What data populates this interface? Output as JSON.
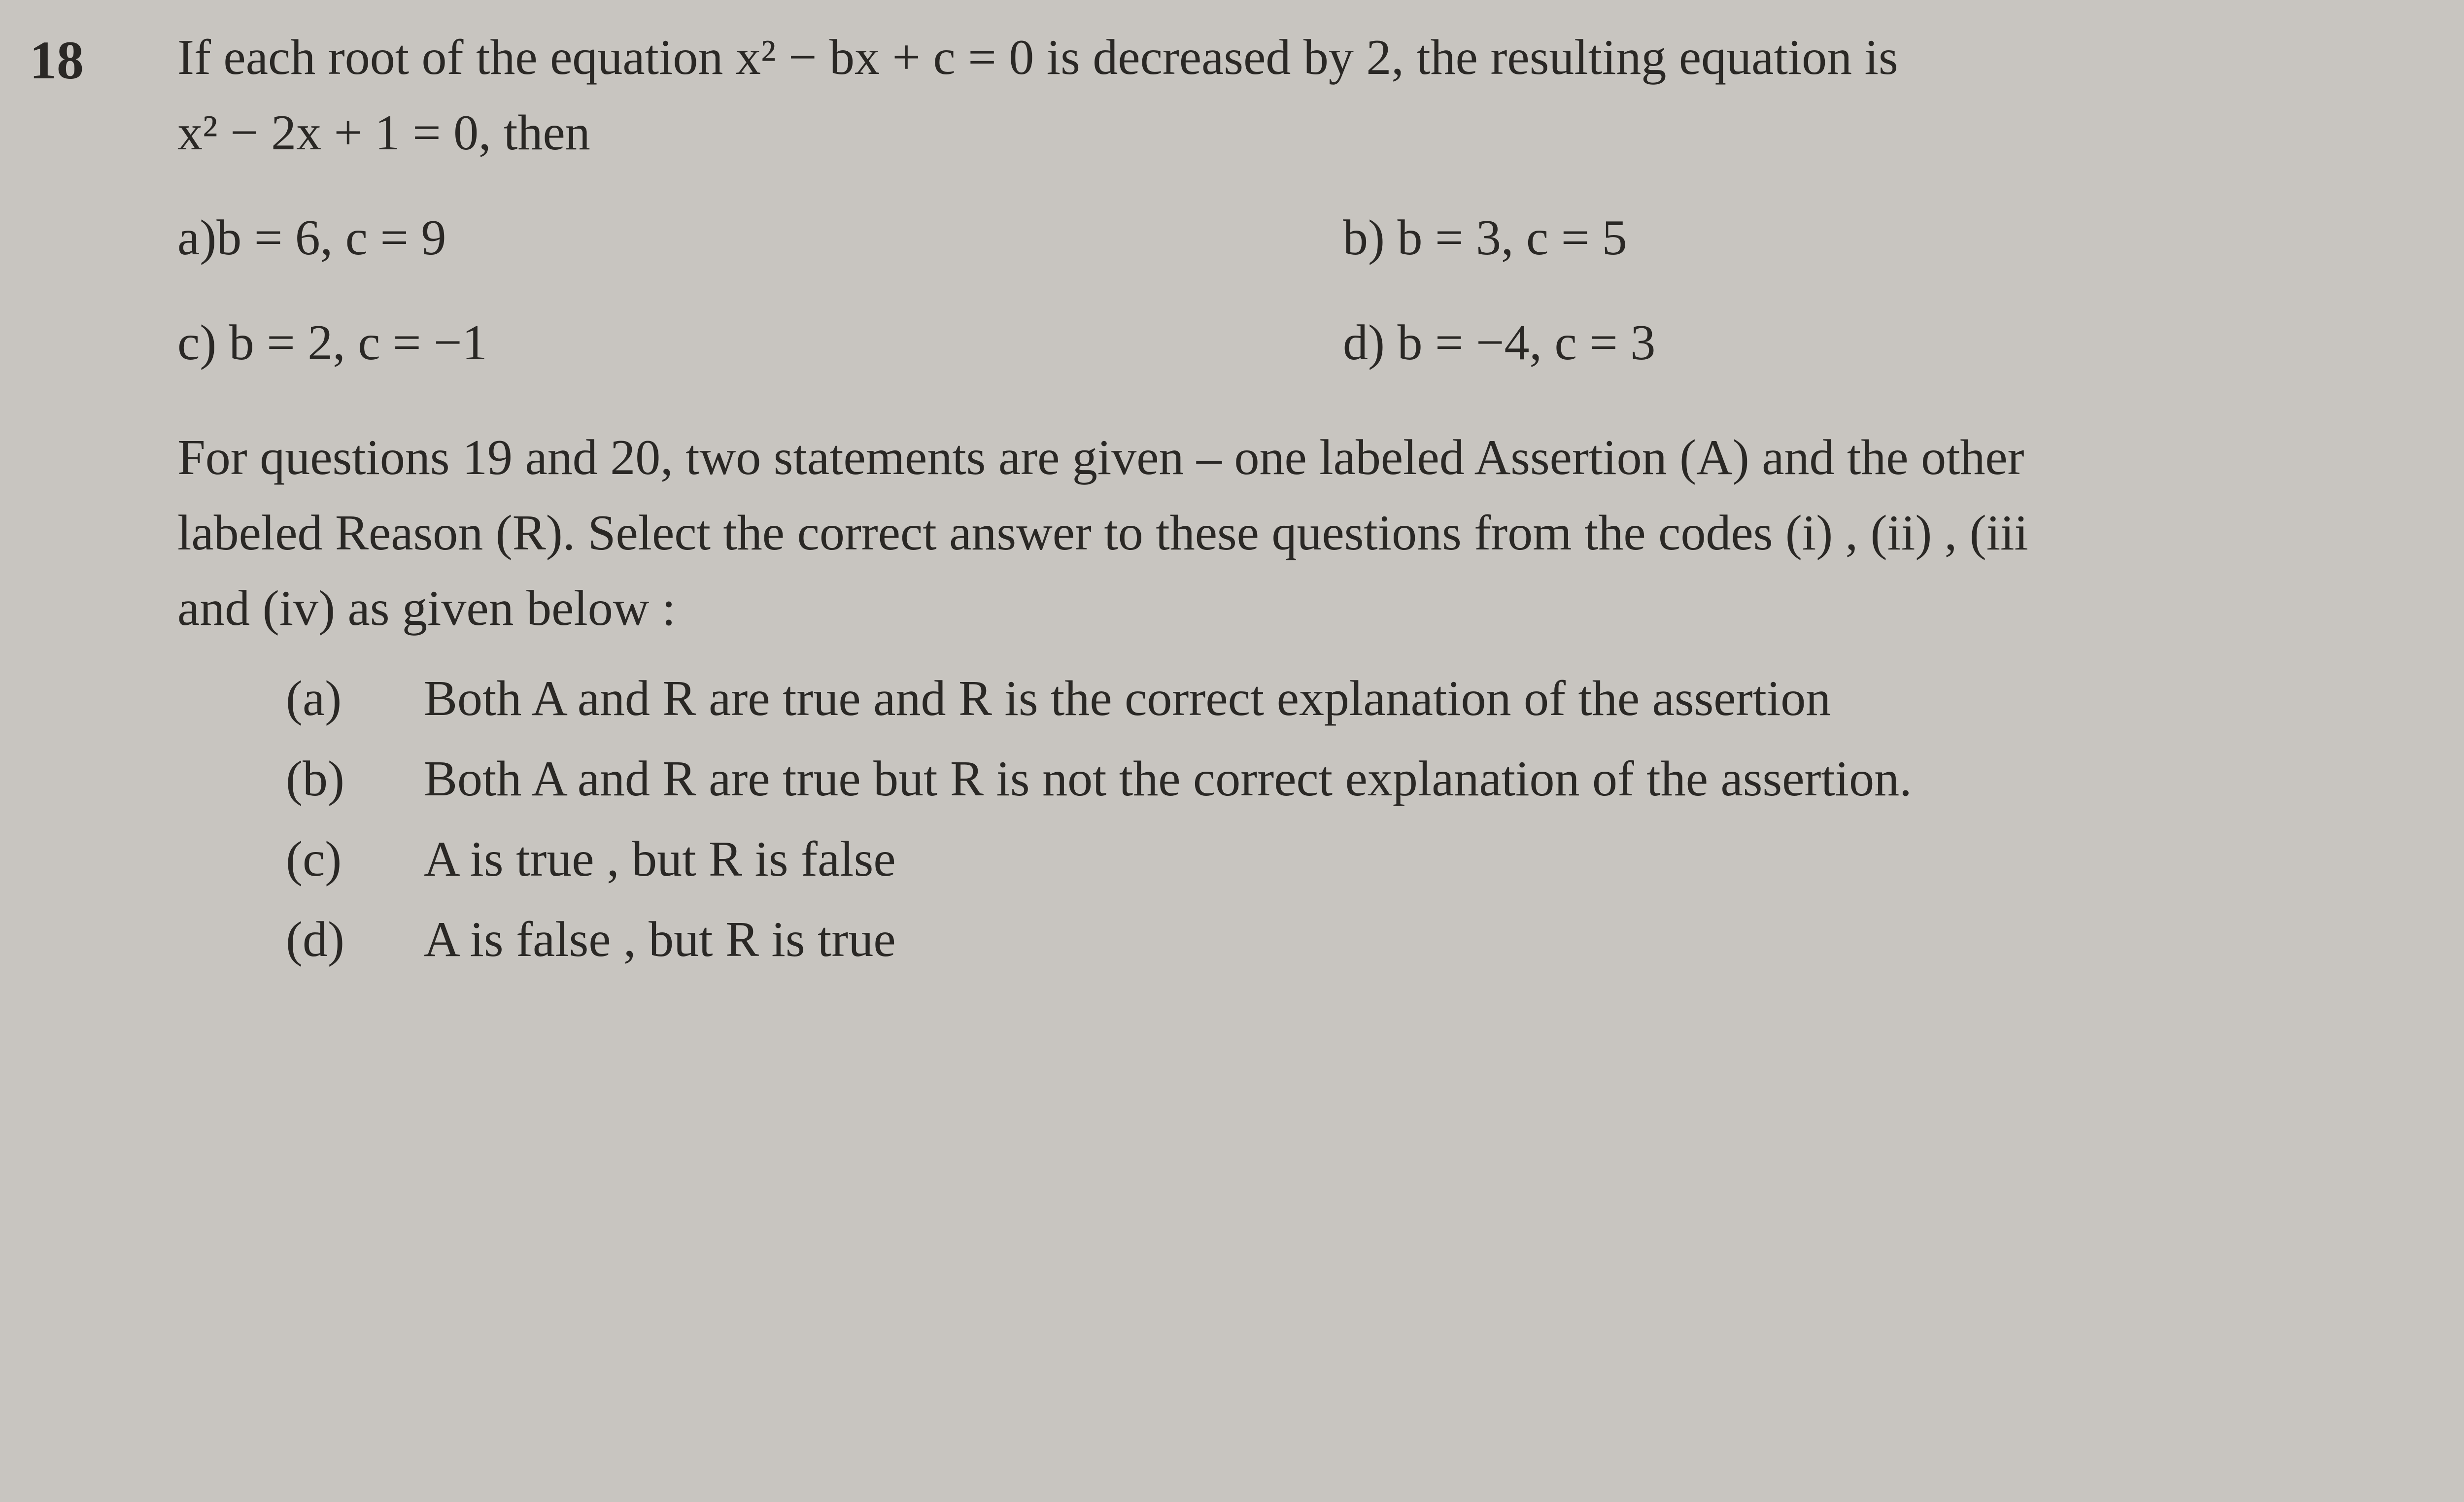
{
  "question": {
    "number": "18",
    "text_line1": "If each root of the equation x² − bx + c = 0 is decreased by 2, the resulting equation is",
    "text_line2": "x² − 2x + 1 = 0, then",
    "options": {
      "a": "a)b = 6, c = 9",
      "b": "b) b = 3, c = 5",
      "c": "c) b = 2, c = −1",
      "d": "d) b = −4, c = 3"
    }
  },
  "instructions": {
    "line1": "For questions 19 and 20, two statements are given – one labeled Assertion (A) and the other",
    "line2": "labeled Reason (R). Select the correct answer to these questions from the codes (i) , (ii) , (iii",
    "line3": "and (iv) as given below :"
  },
  "answer_options": {
    "a": {
      "label": "(a)",
      "text": "Both A and R are true and R is the correct explanation of the assertion"
    },
    "b": {
      "label": "(b)",
      "text": "Both A and R are true but R is not the correct explanation of the assertion."
    },
    "c": {
      "label": "(c)",
      "text": "A is true , but R is false"
    },
    "d": {
      "label": "(d)",
      "text": "A is false , but R is true"
    }
  },
  "styling": {
    "background_color": "#c8c5c0",
    "text_color": "#2a2825",
    "font_family": "Times New Roman",
    "base_fontsize": 102,
    "question_number_fontsize": 110,
    "question_number_fontweight": "bold"
  }
}
